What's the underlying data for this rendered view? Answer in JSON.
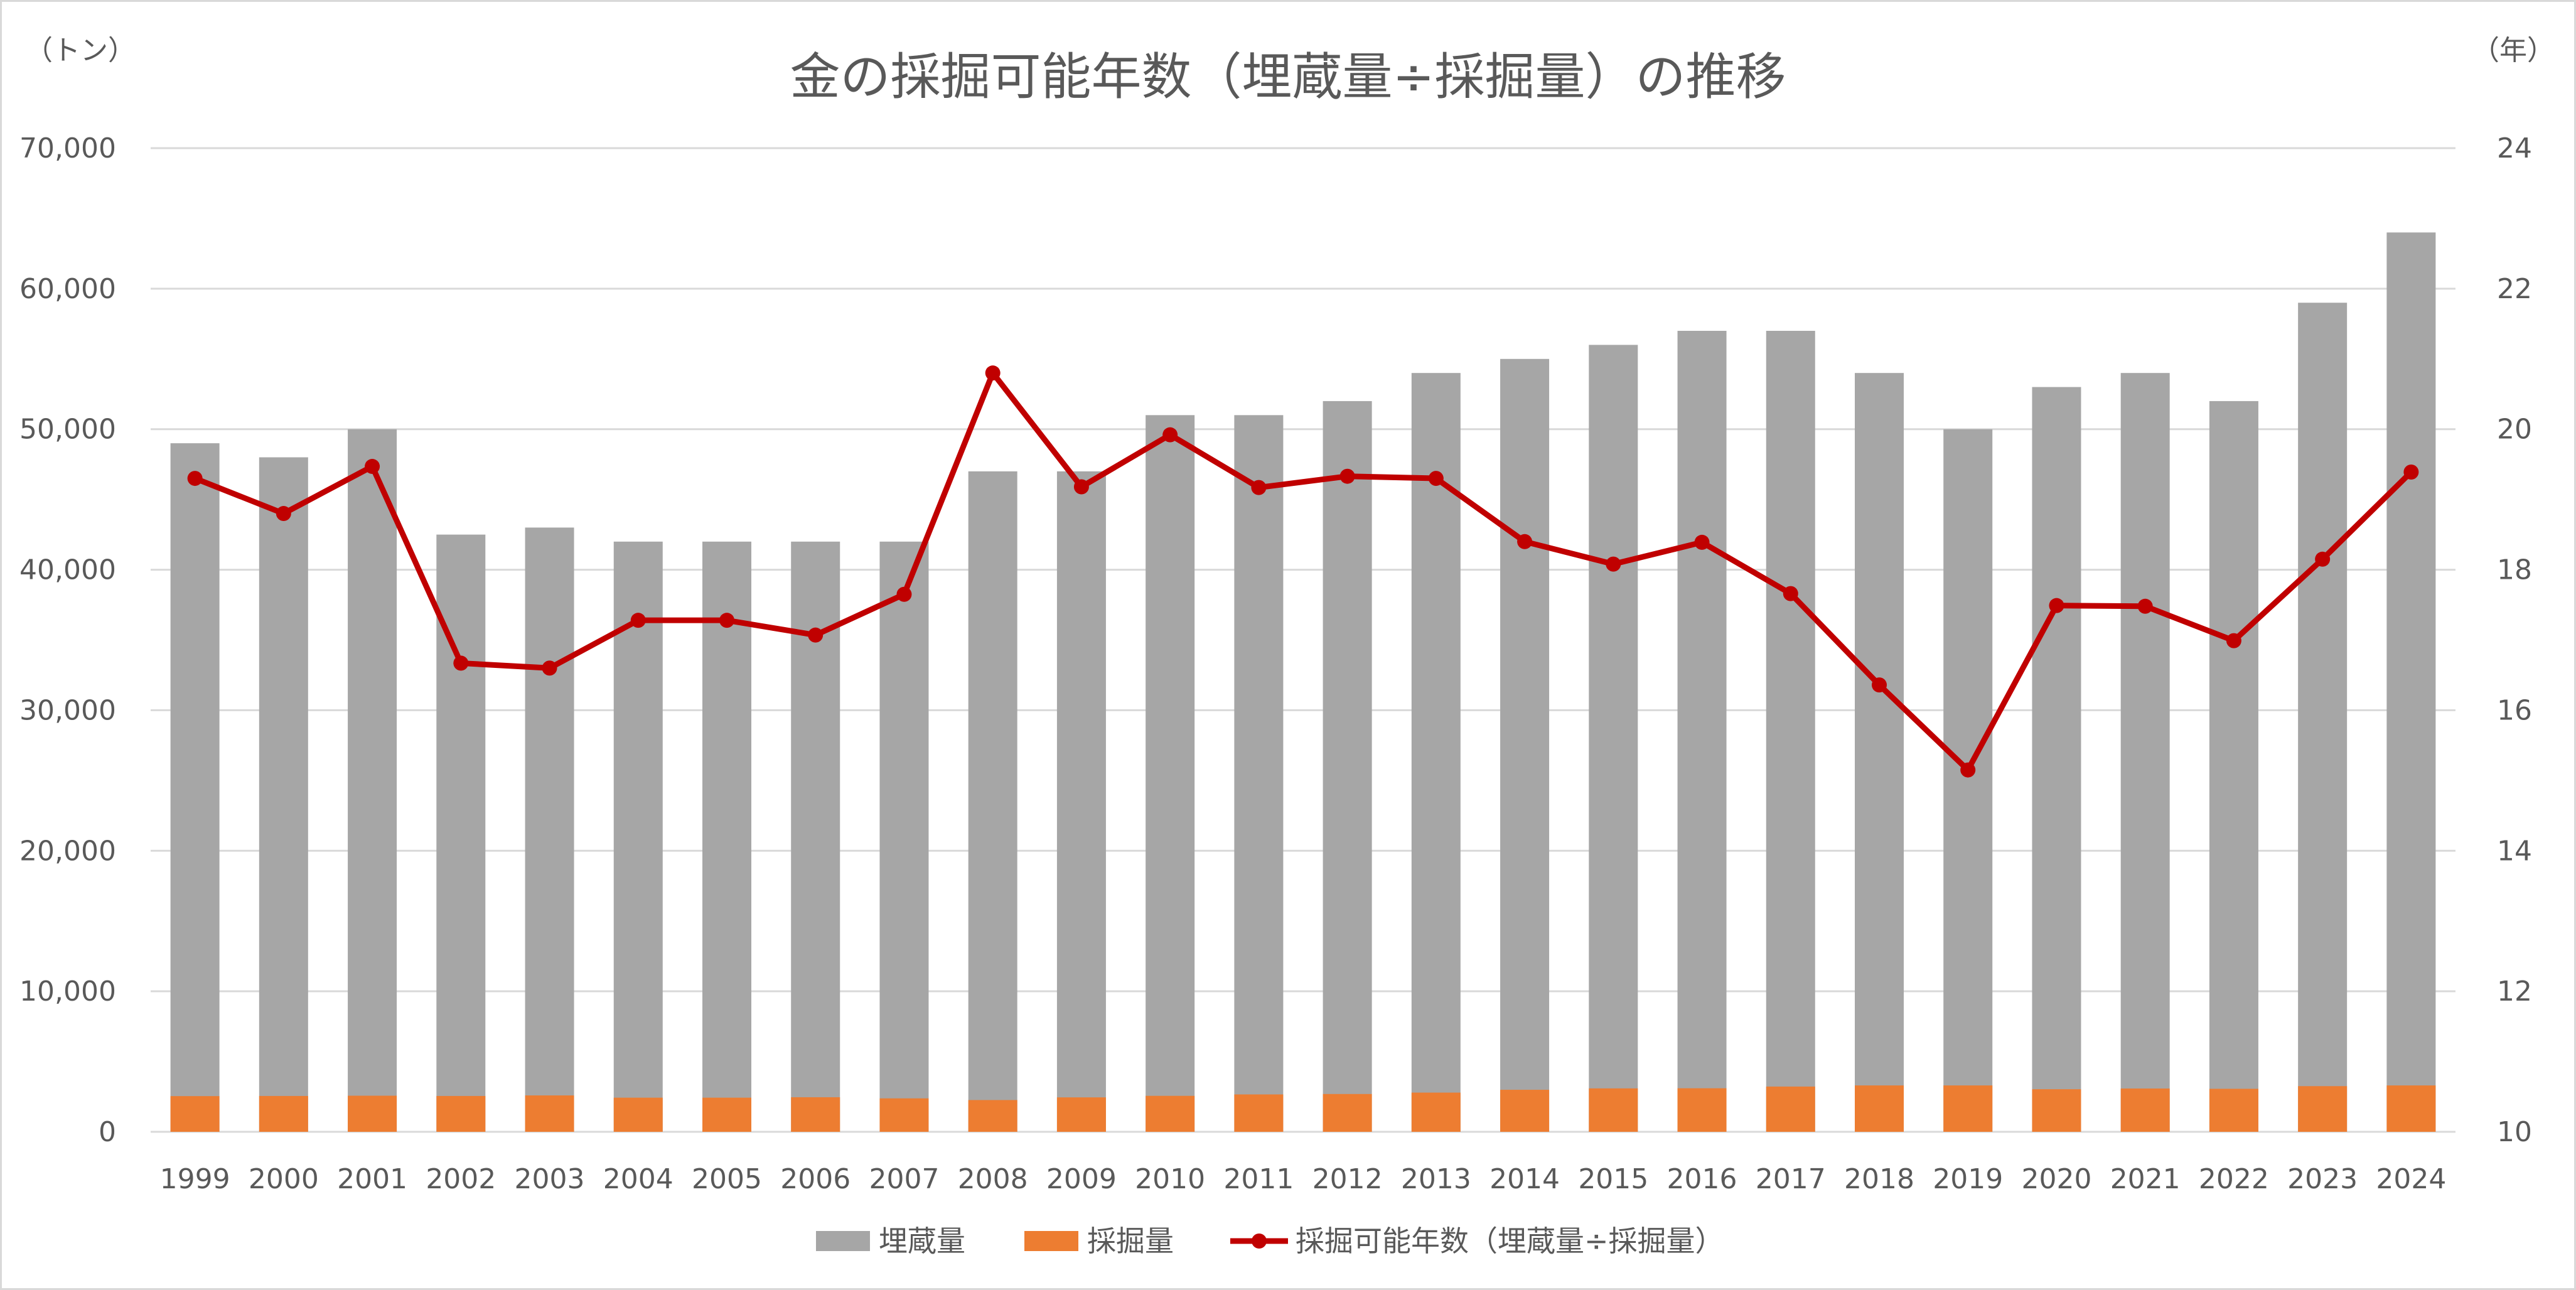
{
  "chart_data": {
    "type": "bar",
    "title": "金の採掘可能年数（埋蔵量÷採掘量）の推移",
    "y_left_unit": "（トン）",
    "y_right_unit": "（年）",
    "categories": [
      "1999",
      "2000",
      "2001",
      "2002",
      "2003",
      "2004",
      "2005",
      "2006",
      "2007",
      "2008",
      "2009",
      "2010",
      "2011",
      "2012",
      "2013",
      "2014",
      "2015",
      "2016",
      "2017",
      "2018",
      "2019",
      "2020",
      "2021",
      "2022",
      "2023",
      "2024"
    ],
    "y_left_ticks": [
      "0",
      "10,000",
      "20,000",
      "30,000",
      "40,000",
      "50,000",
      "60,000",
      "70,000"
    ],
    "y_right_ticks": [
      "10",
      "12",
      "14",
      "16",
      "18",
      "20",
      "22",
      "24"
    ],
    "ylim_left": [
      0,
      70000
    ],
    "ylim_right": [
      10,
      24
    ],
    "grid": true,
    "legend_position": "bottom",
    "series": [
      {
        "name": "埋蔵量",
        "type": "bar",
        "axis": "left",
        "color": "#a6a6a6",
        "values": [
          49000,
          48000,
          50000,
          42500,
          43000,
          42000,
          42000,
          42000,
          42000,
          47000,
          47000,
          51000,
          51000,
          52000,
          54000,
          55000,
          56000,
          57000,
          57000,
          54000,
          50000,
          53000,
          54000,
          52000,
          59000,
          64000
        ]
      },
      {
        "name": "採掘量",
        "type": "bar",
        "axis": "left",
        "color": "#ed7d31",
        "values": [
          2540,
          2550,
          2570,
          2550,
          2590,
          2430,
          2430,
          2460,
          2380,
          2260,
          2450,
          2560,
          2660,
          2690,
          2790,
          2990,
          3090,
          3100,
          3220,
          3300,
          3300,
          3030,
          3080,
          3060,
          3250,
          3300
        ]
      },
      {
        "name": "採掘可能年数（埋蔵量÷採掘量）",
        "type": "line",
        "axis": "right",
        "color": "#c00000",
        "values": [
          19.3,
          18.8,
          19.47,
          16.67,
          16.6,
          17.28,
          17.28,
          17.07,
          17.65,
          20.8,
          19.18,
          19.92,
          19.17,
          19.33,
          19.3,
          18.4,
          18.08,
          18.39,
          17.66,
          16.36,
          15.15,
          17.49,
          17.48,
          16.99,
          18.15,
          19.39
        ]
      }
    ]
  }
}
